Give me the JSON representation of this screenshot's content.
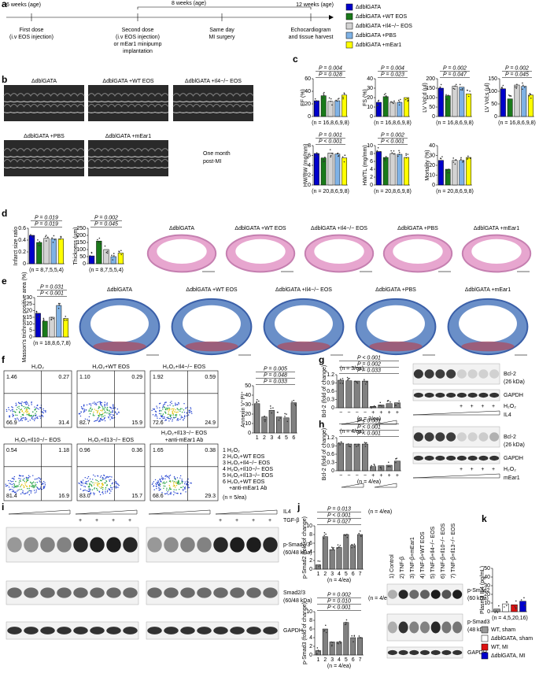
{
  "panel_labels": [
    "a",
    "b",
    "c",
    "d",
    "e",
    "f",
    "g",
    "h",
    "i",
    "j",
    "k"
  ],
  "timeline": {
    "ages": [
      "6 weeks (age)",
      "8 weeks (age)",
      "12 weeks (age)"
    ],
    "steps": [
      [
        "First dose",
        "(i.v EOS injection)"
      ],
      [
        "Second dose",
        "(i.v EOS injection)",
        "or mEar1 minipump",
        "implantation"
      ],
      [
        "Same day",
        "MI surgery"
      ],
      [
        "Echocardiogram",
        "and tissue harvest"
      ]
    ]
  },
  "legend": {
    "items": [
      {
        "name": "ΔdblGATA",
        "color": "#0000cc"
      },
      {
        "name": "ΔdblGATA +WT EOS",
        "color": "#1a7a1a"
      },
      {
        "name": "ΔdblGATA +Il4−/− EOS",
        "color": "#d3d3d3"
      },
      {
        "name": "ΔdblGATA +PBS",
        "color": "#7fb2e5"
      },
      {
        "name": "ΔdblGATA +mEar1",
        "color": "#ffff00"
      }
    ]
  },
  "echo": {
    "labels": [
      "ΔdblGATA",
      "ΔdblGATA +WT EOS",
      "ΔdblGATA +Il4−/− EOS",
      "ΔdblGATA +PBS",
      "ΔdblGATA +mEar1"
    ],
    "note": [
      "One month",
      "post-MI"
    ]
  },
  "panel_c": [
    {
      "type": "bar",
      "ylabel": "EF (%)",
      "ylim": [
        0,
        60
      ],
      "yticks": [
        0,
        20,
        40,
        60
      ],
      "values": [
        25,
        33,
        24,
        25,
        34
      ],
      "pvalues": [
        "P = 0.004",
        "P = 0.028"
      ],
      "n": "(n = 16,8,6,9,8)"
    },
    {
      "type": "bar",
      "ylabel": "FS (%)",
      "ylim": [
        0,
        40
      ],
      "yticks": [
        0,
        10,
        20,
        30,
        40
      ],
      "values": [
        15,
        21,
        15,
        15,
        20
      ],
      "pvalues": [
        "P = 0.004",
        "P = 0.023"
      ],
      "n": "(n = 16,8,6,9,8)"
    },
    {
      "type": "bar",
      "ylabel": "LV Vol;d (μl)",
      "ylim": [
        0,
        200
      ],
      "yticks": [
        0,
        50,
        100,
        150,
        200
      ],
      "values": [
        150,
        110,
        160,
        155,
        120
      ],
      "pvalues": [
        "P = 0.002",
        "P = 0.047"
      ],
      "n": "(n = 16,8,6,9,8)"
    },
    {
      "type": "bar",
      "ylabel": "LV Vol;s (μl)",
      "ylim": [
        0,
        150
      ],
      "yticks": [
        0,
        50,
        100,
        150
      ],
      "values": [
        110,
        70,
        125,
        120,
        85
      ],
      "pvalues": [
        "P = 0.002",
        "P = 0.045"
      ],
      "n": "(n = 16,8,6,9,8)"
    },
    {
      "type": "bar",
      "ylabel": "HW/BW (mg/mm)",
      "ylim": [
        0,
        8
      ],
      "yticks": [
        0,
        2,
        4,
        6,
        8
      ],
      "values": [
        6.4,
        5.5,
        6.5,
        6.3,
        5.5
      ],
      "pvalues": [
        "P = 0.001",
        "P < 0.001"
      ],
      "n": "(n = 20,8,6,9,8)"
    },
    {
      "type": "bar",
      "ylabel": "HW/TL (mg/mm)",
      "ylim": [
        0,
        10
      ],
      "yticks": [
        0,
        2,
        4,
        6,
        8,
        10
      ],
      "values": [
        8.5,
        7,
        8,
        7.8,
        7
      ],
      "pvalues": [
        "P = 0.002",
        "P < 0.001"
      ],
      "n": "(n = 20,8,6,9,8)"
    },
    {
      "type": "bar",
      "ylabel": "Mortality (%)",
      "ylim": [
        0,
        40
      ],
      "yticks": [
        0,
        10,
        20,
        30,
        40
      ],
      "values": [
        25,
        16,
        25,
        25,
        28
      ],
      "n": "(n = 20,8,6,9,8)"
    }
  ],
  "panel_d": {
    "charts": [
      {
        "type": "bar",
        "ylabel": "Infarct size ratio",
        "ylim": [
          0,
          0.6
        ],
        "yticks": [
          0,
          0.2,
          0.4,
          0.6
        ],
        "values": [
          0.48,
          0.36,
          0.43,
          0.42,
          0.42
        ],
        "pvalues": [
          "P = 0.019",
          "P = 0.019"
        ],
        "n": "(n = 8,7,5,5,4)"
      },
      {
        "type": "bar",
        "ylabel": "Thickness (μm)",
        "ylim": [
          0,
          250
        ],
        "yticks": [
          0,
          50,
          100,
          150,
          200,
          250
        ],
        "values": [
          55,
          160,
          100,
          50,
          75
        ],
        "pvalues": [
          "P = 0.002",
          "P = 0.045"
        ],
        "n": "(n = 8,7,5,5,4)"
      }
    ],
    "histology": [
      "ΔdblGATA",
      "ΔdblGATA +WT EOS",
      "ΔdblGATA +Il4−/− EOS",
      "ΔdblGATA +PBS",
      "ΔdblGATA +mEar1"
    ]
  },
  "panel_e": {
    "chart": {
      "type": "bar",
      "ylabel": "Masson's trichrome positive area (%)",
      "ylim": [
        0,
        30
      ],
      "yticks": [
        0,
        5,
        10,
        15,
        20,
        25,
        30
      ],
      "values": [
        18,
        12,
        15,
        24,
        14
      ],
      "pvalues": [
        "P = 0.031",
        "P < 0.001"
      ],
      "n": "(n = 18,8,6,7,8)"
    },
    "histology": [
      "ΔdblGATA",
      "ΔdblGATA +WT EOS",
      "ΔdblGATA +Il4−/− EOS",
      "ΔdblGATA +PBS",
      "ΔdblGATA +mEar1"
    ]
  },
  "panel_f": {
    "plots": [
      {
        "title": [
          "H₂O₂"
        ],
        "quadrants": [
          "1.46",
          "0.27",
          "66.9",
          "31.4"
        ]
      },
      {
        "title": [
          "H₂O₂+WT EOS"
        ],
        "quadrants": [
          "1.10",
          "0.29",
          "82.7",
          "15.9"
        ]
      },
      {
        "title": [
          "H₂O₂+Il4−/− EOS"
        ],
        "quadrants": [
          "1.92",
          "0.59",
          "72.6",
          "24.9"
        ]
      },
      {
        "title": [
          "H₂O₂+Il10−/− EOS"
        ],
        "quadrants": [
          "0.54",
          "1.18",
          "81.4",
          "16.9"
        ]
      },
      {
        "title": [
          "H₂O₂+Il13−/− EOS"
        ],
        "quadrants": [
          "0.96",
          "0.36",
          "83.0",
          "15.7"
        ]
      },
      {
        "title": [
          "H₂O₂+Il13−/− EOS",
          "+anti-mEar1 Ab"
        ],
        "quadrants": [
          "1.65",
          "0.38",
          "68.6",
          "29.3"
        ]
      }
    ],
    "chart": {
      "type": "bar",
      "ylabel": "Annexin V⁺PI⁺",
      "ylim": [
        0,
        50
      ],
      "yticks": [
        0,
        10,
        20,
        30,
        40,
        50
      ],
      "categories": [
        "1",
        "2",
        "3",
        "4",
        "5",
        "6"
      ],
      "values": [
        31,
        17,
        24,
        17,
        16,
        32
      ],
      "color": "#808080",
      "pvalues": [
        "P = 0.005",
        "P = 0.048",
        "P = 0.033"
      ]
    },
    "groups": [
      [
        "1 H₂O₂"
      ],
      [
        "2 H₂O₂+WT EOS"
      ],
      [
        "3 H₂O₂+Il4−/− EOS"
      ],
      [
        "4 H₂O₂+Il10−/− EOS"
      ],
      [
        "5 H₂O₂+Il13−/− EOS"
      ],
      [
        "6 H₂O₂+WT EOS",
        "+anti-mEar1 Ab"
      ]
    ],
    "n": "(n = 5/ea)"
  },
  "panel_g": {
    "chart": {
      "type": "bar",
      "ylabel": "Bcl-2 (fold of change)",
      "ylim": [
        0,
        1.2
      ],
      "yticks": [
        0,
        0.3,
        0.6,
        0.9,
        1.2
      ],
      "categories": [
        "−",
        "−",
        "−",
        "−",
        "+",
        "+",
        "+",
        "+"
      ],
      "values": [
        1,
        0.98,
        0.97,
        0.97,
        0.05,
        0.1,
        0.15,
        0.18
      ],
      "color": "#808080",
      "pvalues": [
        "P < 0.001",
        "P = 0.002",
        "P = 0.033"
      ],
      "n": "(n = 3/ea)"
    },
    "blot": {
      "labels": [
        "Bcl-2",
        "(26 kDa)",
        "GAPDH"
      ],
      "signs": [
        "+",
        "+",
        "+",
        "+"
      ],
      "treatment": [
        "H₂O₂",
        "IL4"
      ]
    }
  },
  "panel_h": {
    "chart": {
      "type": "bar",
      "ylabel": "Bcl-2 (fold of change)",
      "ylim": [
        0,
        1.2
      ],
      "yticks": [
        0,
        0.3,
        0.6,
        0.9,
        1.2
      ],
      "categories": [
        "−",
        "−",
        "−",
        "−",
        "+",
        "+",
        "+",
        "+"
      ],
      "values": [
        1,
        0.97,
        0.97,
        0.97,
        0.15,
        0.18,
        0.2,
        0.35
      ],
      "color": "#808080",
      "pvalues": [
        "P < 0.001",
        "P < 0.001",
        "P < 0.001"
      ],
      "n": "(n = 4/ea)"
    },
    "blot": {
      "labels": [
        "Bcl-2",
        "(26 kDa)",
        "GAPDH"
      ],
      "signs": [
        "+",
        "+",
        "+",
        "+"
      ],
      "treatment": [
        "H₂O₂",
        "mEar1"
      ]
    }
  },
  "panel_i": {
    "treatment": [
      "IL4",
      "TGF-β"
    ],
    "signs": [
      "+",
      "+",
      "+",
      "+",
      "+",
      "+",
      "+",
      "+"
    ],
    "labels": [
      [
        "p-Smad2/3",
        "(60/48 kDa)"
      ],
      [
        "Smad2/3",
        "(60/48 kDa)"
      ],
      [
        "GAPDH"
      ]
    ]
  },
  "panel_j": {
    "charts": [
      {
        "type": "bar",
        "ylabel": "p-Smad2 (fold of change)",
        "ylim": [
          0,
          10
        ],
        "yticks": [
          0,
          2,
          4,
          6,
          8,
          10
        ],
        "categories": [
          "1",
          "2",
          "3",
          "4",
          "5",
          "6",
          "7"
        ],
        "values": [
          1,
          7.5,
          4.5,
          5,
          8,
          5.5,
          8
        ],
        "color": "#808080",
        "pvalues": [
          "P = 0.013",
          "P < 0.001",
          "P = 0.027"
        ],
        "n": "(n = 4/ea)"
      },
      {
        "type": "bar",
        "ylabel": "p-Smad3 (fold of change)",
        "ylim": [
          0,
          10
        ],
        "yticks": [
          0,
          2,
          4,
          6,
          8,
          10
        ],
        "categories": [
          "1",
          "2",
          "3",
          "4",
          "5",
          "6",
          "7"
        ],
        "values": [
          1,
          6,
          3,
          3,
          7.5,
          4,
          4
        ],
        "color": "#808080",
        "pvalues": [
          "P = 0.002",
          "P = 0.010",
          "P < 0.001"
        ],
        "n": "(n = 4/ea)"
      }
    ],
    "lanes": [
      "1) Control",
      "2) TNF-β",
      "3) TNF-β+mEar1",
      "4) TNF-β+WT EOS",
      "5) TNF-β+Il4−/− EOS",
      "6) TNF-β+Il10−/− EOS",
      "7) TNF-β+Il13−/− EOS"
    ],
    "blot_labels": [
      [
        "p-Smad2",
        "(60 kDa)"
      ],
      [
        "p-Smad3",
        "(48 kDa)"
      ],
      [
        "GAPDH"
      ]
    ]
  },
  "panel_k": {
    "chart": {
      "type": "bar",
      "ylabel": "Plasma IL4 (pg/mL)",
      "ylim": [
        0,
        50
      ],
      "yticks": [
        0,
        10,
        20,
        30,
        40,
        50
      ],
      "values": [
        3,
        9,
        8,
        12
      ],
      "n": "(n = 4,5,20,16)",
      "legend": [
        {
          "name": "WT, sham",
          "color": "#999999"
        },
        {
          "name": "ΔdblGATA, sham",
          "color": "#ffffff"
        },
        {
          "name": "WT, MI",
          "color": "#dd1111"
        },
        {
          "name": "ΔdblGATA, MI",
          "color": "#0000cc"
        }
      ]
    }
  }
}
